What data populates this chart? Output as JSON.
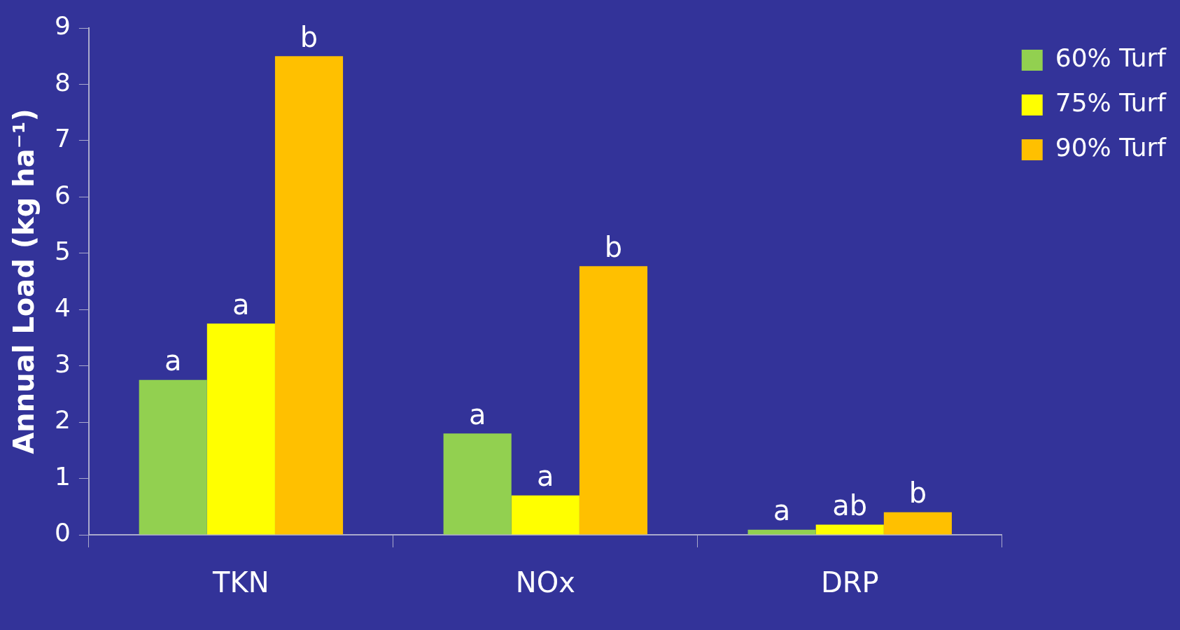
{
  "chart_data": {
    "type": "bar",
    "ylabel": "Annual Load (kg ha⁻¹)",
    "categories": [
      "TKN",
      "NOx",
      "DRP"
    ],
    "series": [
      {
        "name": "60% Turf",
        "color": "#92d050",
        "values": [
          2.75,
          1.8,
          0.09
        ],
        "value_labels": [
          "a",
          "a",
          "a"
        ]
      },
      {
        "name": "75% Turf",
        "color": "#ffff00",
        "values": [
          3.75,
          0.7,
          0.18
        ],
        "value_labels": [
          "a",
          "a",
          "ab"
        ]
      },
      {
        "name": "90% Turf",
        "color": "#ffc000",
        "values": [
          8.5,
          4.77,
          0.4
        ],
        "value_labels": [
          "b",
          "b",
          "b"
        ]
      }
    ],
    "ylim": [
      0,
      9
    ],
    "yticks": [
      0,
      1,
      2,
      3,
      4,
      5,
      6,
      7,
      8,
      9
    ],
    "grid": false,
    "legend": "top right"
  }
}
